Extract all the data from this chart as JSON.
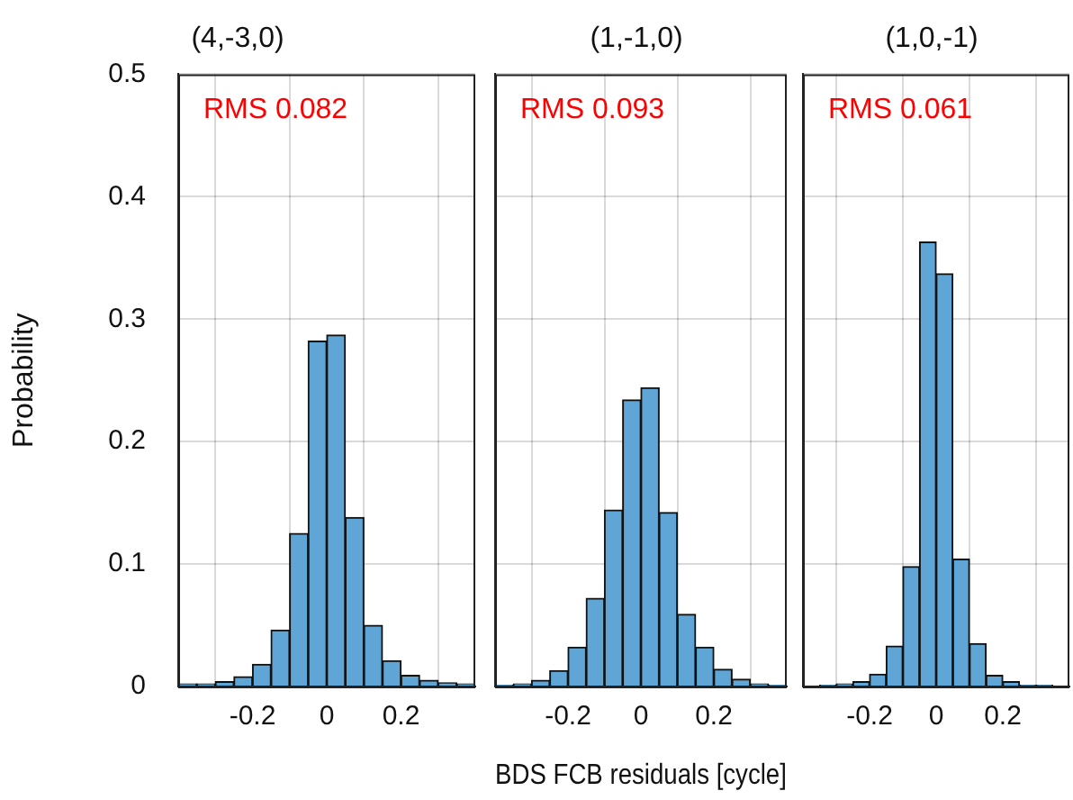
{
  "chart_data": [
    {
      "type": "histogram",
      "title": "(4,-3,0)",
      "ylabel": "Probability",
      "annotations": [
        "RMS 0.082"
      ],
      "color": "#5fa6d6",
      "bins": [
        -0.4,
        -0.35,
        -0.3,
        -0.25,
        -0.2,
        -0.15,
        -0.1,
        -0.05,
        0,
        0.05,
        0.1,
        0.15,
        0.2,
        0.25,
        0.3,
        0.35,
        0.4
      ],
      "values": [
        0.002,
        0.002,
        0.004,
        0.008,
        0.018,
        0.046,
        0.125,
        0.282,
        0.287,
        0.138,
        0.05,
        0.021,
        0.009,
        0.005,
        0.003,
        0.002
      ],
      "xlim": [
        -0.4,
        0.4
      ],
      "xticks": [
        -0.2,
        0,
        0.2
      ],
      "ylim": [
        0,
        0.5
      ],
      "yticks": [
        0,
        0.1,
        0.2,
        0.3,
        0.4,
        0.5
      ],
      "grid": true
    },
    {
      "type": "histogram",
      "title": "(1,-1,0)",
      "xlabel": "BDS FCB residuals [cycle]",
      "annotations": [
        "RMS 0.093"
      ],
      "color": "#5fa6d6",
      "bins": [
        -0.4,
        -0.35,
        -0.3,
        -0.25,
        -0.2,
        -0.15,
        -0.1,
        -0.05,
        0,
        0.05,
        0.1,
        0.15,
        0.2,
        0.25,
        0.3,
        0.35,
        0.4
      ],
      "values": [
        0.001,
        0.002,
        0.005,
        0.013,
        0.032,
        0.072,
        0.144,
        0.234,
        0.244,
        0.142,
        0.059,
        0.032,
        0.014,
        0.006,
        0.002,
        0.001
      ],
      "xlim": [
        -0.4,
        0.4
      ],
      "xticks": [
        -0.2,
        0,
        0.2
      ],
      "ylim": [
        0,
        0.5
      ],
      "yticks": [
        0,
        0.1,
        0.2,
        0.3,
        0.4,
        0.5
      ],
      "grid": true,
      "tick_labels": "x"
    },
    {
      "type": "histogram",
      "title": "(1,0,-1)",
      "annotations": [
        "RMS 0.061"
      ],
      "color": "#5fa6d6",
      "bins": [
        -0.4,
        -0.35,
        -0.3,
        -0.25,
        -0.2,
        -0.15,
        -0.1,
        -0.05,
        0,
        0.05,
        0.1,
        0.15,
        0.2,
        0.25,
        0.3,
        0.35,
        0.4
      ],
      "values": [
        0,
        0.001,
        0.002,
        0.004,
        0.01,
        0.033,
        0.098,
        0.363,
        0.337,
        0.104,
        0.035,
        0.009,
        0.004,
        0.001,
        0.001,
        0
      ],
      "xlim": [
        -0.4,
        0.4
      ],
      "xticks": [
        -0.2,
        0,
        0.2
      ],
      "ylim": [
        0,
        0.5
      ],
      "yticks": [
        0,
        0.1,
        0.2,
        0.3,
        0.4,
        0.5
      ],
      "grid": true,
      "tick_labels": "x"
    }
  ]
}
